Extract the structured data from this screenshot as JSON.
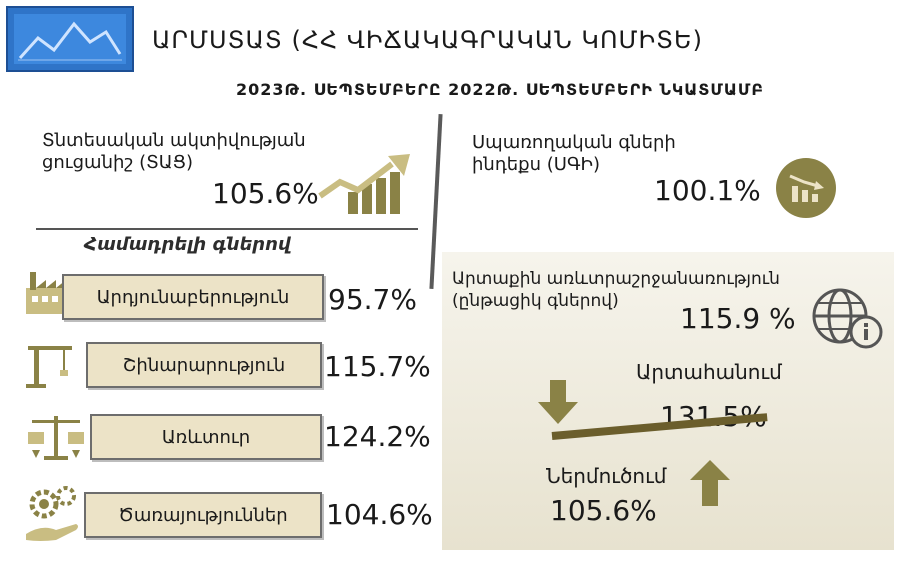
{
  "header": {
    "org_title": "ԱՐՄՍՏԱՏ  (ՀՀ ՎԻՃԱԿԱԳՐԱԿԱՆ ԿՈՄԻՏԵ)",
    "subtitle": "2023Թ. ՍԵՊՏԵՄԲԵՐԸ 2022Թ. ՍԵՊՏԵՄԲԵՐԻ ՆԿԱՏՄԱՄԲ"
  },
  "economic_activity": {
    "label_line1": "Տնտեսական  ակտիվության",
    "label_line2": "ցուցանիշ  (ՏԱՑ)",
    "value": "105.6%"
  },
  "cpi": {
    "label_line1": "Սպառողական  գների",
    "label_line2": "ինդեքս  (ՍԳԻ)",
    "value": "100.1%"
  },
  "comparable_prices": {
    "heading": "Համադրելի գներով",
    "sectors": [
      {
        "label": "Արդյունաբերություն",
        "value": "95.7%",
        "icon": "factory-icon"
      },
      {
        "label": "Շինարարություն",
        "value": "115.7%",
        "icon": "crane-icon"
      },
      {
        "label": "Առևտուր",
        "value": "124.2%",
        "icon": "scales-icon"
      },
      {
        "label": "Ծառայություններ",
        "value": "104.6%",
        "icon": "gears-hand-icon"
      }
    ]
  },
  "foreign_trade": {
    "label_line1": "Արտաքին առևտրաշրջանառություն",
    "label_line2": "(ընթացիկ գներով)",
    "value": "115.9 %",
    "export_label": "Արտահանում",
    "export_value": "131.5%",
    "import_label": "Ներմուծում",
    "import_value": "105.6%"
  },
  "colors": {
    "logo_blue": "#2f74c8",
    "panel_beige": "#ece3c7",
    "olive_accent": "#8a8246"
  }
}
